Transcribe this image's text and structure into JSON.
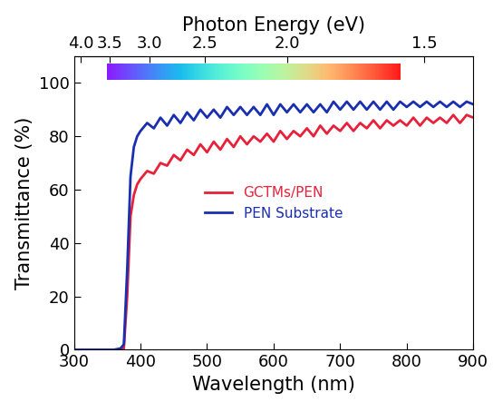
{
  "chart_data": {
    "type": "line",
    "xlabel": "Wavelength (nm)",
    "ylabel": "Transmittance (%)",
    "x2label": "Photon Energy (eV)",
    "x2ticks": [
      4.0,
      3.5,
      3.0,
      2.5,
      2.0,
      1.5
    ],
    "x": [
      300,
      320,
      340,
      360,
      370,
      375,
      380,
      385,
      390,
      395,
      400,
      410,
      420,
      430,
      440,
      450,
      460,
      470,
      480,
      490,
      500,
      510,
      520,
      530,
      540,
      550,
      560,
      570,
      580,
      590,
      600,
      610,
      620,
      630,
      640,
      650,
      660,
      670,
      680,
      690,
      700,
      710,
      720,
      730,
      740,
      750,
      760,
      770,
      780,
      790,
      800,
      810,
      820,
      830,
      840,
      850,
      860,
      870,
      880,
      890,
      900
    ],
    "series": [
      {
        "name": "GCTMs/PEN",
        "color": "#e8213a",
        "line_style": "solid",
        "values": [
          0,
          0,
          0,
          0,
          0,
          0.5,
          20,
          50,
          58,
          62,
          64,
          67,
          66,
          70,
          69,
          73,
          71,
          75,
          73,
          77,
          74,
          78,
          75,
          79,
          76,
          80,
          77,
          80,
          78,
          81,
          78,
          82,
          79,
          82,
          80,
          83,
          80,
          84,
          81,
          84,
          82,
          85,
          82,
          85,
          83,
          86,
          83,
          86,
          84,
          86,
          84,
          87,
          84,
          87,
          85,
          87,
          85,
          88,
          85,
          88,
          87
        ]
      },
      {
        "name": "PEN Substrate",
        "color": "#1a2fb0",
        "line_style": "solid",
        "values": [
          0,
          0,
          0,
          0,
          0.5,
          2,
          30,
          65,
          76,
          80,
          82,
          85,
          83,
          87,
          84,
          88,
          85,
          89,
          86,
          90,
          87,
          90,
          87,
          91,
          88,
          91,
          88,
          91,
          88,
          92,
          88,
          92,
          89,
          92,
          89,
          92,
          89,
          92,
          89,
          93,
          90,
          93,
          90,
          93,
          90,
          93,
          90,
          93,
          90,
          93,
          91,
          93,
          91,
          93,
          91,
          93,
          91,
          93,
          91,
          93,
          92
        ]
      }
    ],
    "xlim": [
      300,
      900
    ],
    "xticks": [
      300,
      400,
      500,
      600,
      700,
      800,
      900
    ],
    "ylim": [
      0,
      110
    ],
    "yticks": [
      0,
      20,
      40,
      60,
      80,
      100
    ],
    "legend": "center",
    "grid": false
  }
}
